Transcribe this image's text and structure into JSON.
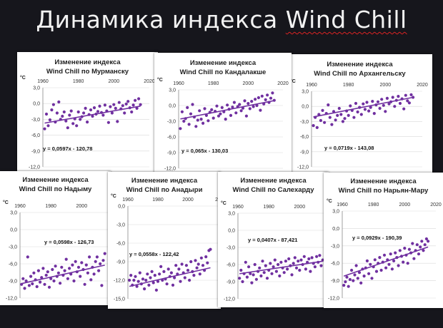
{
  "slide": {
    "title_prefix": "Динамика индекса ",
    "title_suffix": "Wind Chill"
  },
  "colors": {
    "point": "#7030a0",
    "trend": "#7030a0",
    "background": "#16161c"
  },
  "chart_data": [
    {
      "type": "scatter",
      "id": "murmansk",
      "title_line1": "Изменение индекса",
      "title_line2": "Wind Chill по Мурманску",
      "unit": "°C",
      "x_ticks": [
        "1960",
        "1980",
        "2000",
        "2020"
      ],
      "y_ticks": [
        "3,0",
        "0,0",
        "-3,0",
        "-6,0",
        "-9,0",
        "-12,0"
      ],
      "xlim": [
        1960,
        2020
      ],
      "ylim": [
        -12,
        3
      ],
      "equation": "y = 0,0597x - 120,78",
      "trend": {
        "slope": 0.0597,
        "intercept": -120.78
      },
      "x": [
        1961,
        1962,
        1963,
        1964,
        1965,
        1966,
        1967,
        1968,
        1969,
        1970,
        1971,
        1972,
        1973,
        1974,
        1975,
        1976,
        1977,
        1978,
        1979,
        1980,
        1981,
        1982,
        1983,
        1984,
        1985,
        1986,
        1987,
        1988,
        1989,
        1990,
        1991,
        1992,
        1993,
        1994,
        1995,
        1996,
        1997,
        1998,
        1999,
        2000,
        2001,
        2002,
        2003,
        2004,
        2005,
        2006,
        2007,
        2008,
        2009,
        2010,
        2011,
        2012,
        2013,
        2014,
        2015
      ],
      "y": [
        -4.8,
        -2.0,
        -4.2,
        -3.1,
        -1.2,
        -0.2,
        -3.5,
        -1.8,
        0.3,
        -3.0,
        -2.4,
        -1.6,
        -3.3,
        -4.6,
        -2.2,
        -1.4,
        -3.8,
        -2.9,
        -4.2,
        -1.6,
        -3.0,
        -2.5,
        -1.8,
        -0.9,
        -3.5,
        -2.1,
        -1.2,
        -2.4,
        -0.8,
        -2.0,
        -1.5,
        -0.5,
        -1.7,
        -2.2,
        -0.3,
        -1.4,
        -3.6,
        -0.6,
        -1.8,
        -0.2,
        -0.9,
        -3.4,
        0.2,
        -1.0,
        -0.4,
        -1.8,
        -0.1,
        0.4,
        -0.8,
        -1.6,
        -0.3,
        0.6,
        -0.9,
        0.9,
        -0.2
      ]
    },
    {
      "type": "scatter",
      "id": "kandalaksha",
      "title_line1": "Изменение индекса",
      "title_line2": "Wind Chill по Кандалакше",
      "unit": "°C",
      "x_ticks": [
        "1960",
        "1980",
        "2000",
        "2020"
      ],
      "y_ticks": [
        "3,0",
        "0,0",
        "-3,0",
        "-6,0",
        "-9,0",
        "-12,0"
      ],
      "xlim": [
        1960,
        2020
      ],
      "ylim": [
        -12,
        3
      ],
      "equation": "y = 0,065x - 130,03",
      "trend": {
        "slope": 0.065,
        "intercept": -130.03
      },
      "x": [
        1961,
        1962,
        1963,
        1964,
        1965,
        1966,
        1967,
        1968,
        1969,
        1970,
        1971,
        1972,
        1973,
        1974,
        1975,
        1976,
        1977,
        1978,
        1979,
        1980,
        1981,
        1982,
        1983,
        1984,
        1985,
        1986,
        1987,
        1988,
        1989,
        1990,
        1991,
        1992,
        1993,
        1994,
        1995,
        1996,
        1997,
        1998,
        1999,
        2000,
        2001,
        2002,
        2003,
        2004,
        2005,
        2006,
        2007,
        2008,
        2009,
        2010,
        2011,
        2012,
        2013,
        2014,
        2015
      ],
      "y": [
        -4.4,
        -1.2,
        -3.0,
        -2.5,
        -0.4,
        -3.6,
        -1.6,
        0.2,
        -2.2,
        -4.0,
        -2.8,
        -1.0,
        -2.6,
        -3.4,
        -0.6,
        -1.9,
        -2.9,
        -1.3,
        -0.8,
        -2.4,
        -1.1,
        -0.1,
        -2.0,
        -1.6,
        -0.4,
        -1.2,
        -2.6,
        0.1,
        -0.7,
        -1.9,
        -0.3,
        0.6,
        -1.4,
        -0.2,
        0.2,
        -1.0,
        -0.5,
        0.9,
        -2.0,
        0.4,
        -0.6,
        0.8,
        -0.2,
        1.2,
        0.0,
        1.5,
        -0.9,
        1.8,
        0.3,
        1.1,
        2.0,
        0.6,
        1.4,
        2.4,
        1.0
      ]
    },
    {
      "type": "scatter",
      "id": "arkhangelsk",
      "title_line1": "Изменение индекса",
      "title_line2": "Wind Chill по Архангельску",
      "unit": "°C",
      "x_ticks": [
        "1960",
        "1980",
        "2000",
        "2020"
      ],
      "y_ticks": [
        "3,0",
        "0,0",
        "-3,0",
        "-6,0",
        "-9,0",
        "-12,0"
      ],
      "xlim": [
        1960,
        2020
      ],
      "ylim": [
        -12,
        3
      ],
      "equation": "y = 0,0719x - 143,08",
      "trend": {
        "slope": 0.0719,
        "intercept": -143.08
      },
      "x": [
        1961,
        1962,
        1963,
        1964,
        1965,
        1966,
        1967,
        1968,
        1969,
        1970,
        1971,
        1972,
        1973,
        1974,
        1975,
        1976,
        1977,
        1978,
        1979,
        1980,
        1981,
        1982,
        1983,
        1984,
        1985,
        1986,
        1987,
        1988,
        1989,
        1990,
        1991,
        1992,
        1993,
        1994,
        1995,
        1996,
        1997,
        1998,
        1999,
        2000,
        2001,
        2002,
        2003,
        2004,
        2005,
        2006,
        2007,
        2008,
        2009,
        2010,
        2011,
        2012,
        2013,
        2014,
        2015
      ],
      "y": [
        -3.8,
        -2.2,
        -4.2,
        -1.6,
        -2.8,
        -0.8,
        -3.2,
        -1.4,
        0.3,
        -2.2,
        -3.6,
        -1.0,
        -2.7,
        -1.8,
        -0.4,
        -1.6,
        -3.0,
        -2.4,
        -0.9,
        -1.8,
        0.1,
        -0.8,
        -2.2,
        0.6,
        -1.1,
        -0.2,
        -1.6,
        0.5,
        -0.6,
        0.8,
        -0.9,
        -0.2,
        1.0,
        -1.4,
        0.3,
        0.9,
        -0.4,
        1.4,
        0.2,
        -1.0,
        1.6,
        0.5,
        0.9,
        1.8,
        0.0,
        1.2,
        2.0,
        0.6,
        1.5,
        -0.5,
        2.2,
        1.1,
        0.7,
        2.3,
        1.8
      ]
    },
    {
      "type": "scatter",
      "id": "nadym",
      "title_line1": "Изменение индекса",
      "title_line2": "Wind Chill по Надыму",
      "unit": "°C",
      "x_ticks": [
        "1960",
        "1980",
        "2000"
      ],
      "y_ticks": [
        "3,0",
        "0,0",
        "-3,0",
        "-6,0",
        "-9,0",
        "-12,0"
      ],
      "xlim": [
        1960,
        2017
      ],
      "ylim": [
        -12,
        3
      ],
      "equation": "y = 0,0598x - 126,73",
      "trend": {
        "slope": 0.0598,
        "intercept": -126.73
      },
      "x": [
        1961,
        1962,
        1963,
        1964,
        1965,
        1966,
        1967,
        1968,
        1969,
        1970,
        1971,
        1972,
        1973,
        1974,
        1975,
        1976,
        1977,
        1978,
        1979,
        1980,
        1981,
        1982,
        1983,
        1984,
        1985,
        1986,
        1987,
        1988,
        1989,
        1990,
        1991,
        1992,
        1993,
        1994,
        1995,
        1996,
        1997,
        1998,
        1999,
        2000,
        2001,
        2002,
        2003,
        2004,
        2005,
        2006,
        2007,
        2008,
        2009,
        2010,
        2011,
        2012,
        2013,
        2014,
        2015
      ],
      "y": [
        -9.6,
        -8.6,
        -10.3,
        -9.0,
        -4.8,
        -9.8,
        -8.2,
        -9.5,
        -7.6,
        -8.8,
        -10.0,
        -7.2,
        -9.2,
        -8.4,
        -6.8,
        -9.6,
        -8.0,
        -7.4,
        -10.1,
        -8.6,
        -7.0,
        -9.0,
        -6.4,
        -8.2,
        -7.6,
        -9.4,
        -6.6,
        -8.0,
        -7.2,
        -5.2,
        -8.6,
        -6.8,
        -7.8,
        -6.2,
        -9.0,
        -5.6,
        -7.4,
        -6.6,
        -8.2,
        -5.8,
        -7.0,
        -9.6,
        -6.2,
        -7.6,
        -4.8,
        -8.8,
        -6.6,
        -7.8,
        -5.6,
        -4.8,
        -7.2,
        -6.0,
        -9.8,
        -5.4,
        -4.2
      ]
    },
    {
      "type": "scatter",
      "id": "anadyr",
      "title_line1": "Изменение индекса",
      "title_line2": "Wind Chill по Анадыри",
      "unit": "°C",
      "x_ticks": [
        "1960",
        "1980",
        "2000",
        "20"
      ],
      "y_ticks": [
        "0,0",
        "-3,0",
        "-6,0",
        "-9,0",
        "-12,0",
        "-15,0"
      ],
      "xlim": [
        1960,
        2020
      ],
      "ylim": [
        -15,
        0
      ],
      "equation": "y = 0,0558x - 122,42",
      "trend": {
        "slope": 0.0558,
        "intercept": -122.42
      },
      "x": [
        1961,
        1962,
        1963,
        1964,
        1965,
        1966,
        1967,
        1968,
        1969,
        1970,
        1971,
        1972,
        1973,
        1974,
        1975,
        1976,
        1977,
        1978,
        1979,
        1980,
        1981,
        1982,
        1983,
        1984,
        1985,
        1986,
        1987,
        1988,
        1989,
        1990,
        1991,
        1992,
        1993,
        1994,
        1995,
        1996,
        1997,
        1998,
        1999,
        2000,
        2001,
        2002,
        2003,
        2004,
        2005,
        2006,
        2007,
        2008,
        2009,
        2010,
        2011,
        2012,
        2013,
        2014,
        2015
      ],
      "y": [
        -12.0,
        -11.2,
        -12.8,
        -12.0,
        -11.4,
        -13.0,
        -12.2,
        -10.8,
        -12.6,
        -11.8,
        -13.4,
        -12.0,
        -11.0,
        -12.8,
        -11.6,
        -10.6,
        -12.4,
        -11.2,
        -13.6,
        -12.2,
        -11.0,
        -9.8,
        -12.0,
        -10.6,
        -11.8,
        -12.6,
        -10.2,
        -11.4,
        -10.8,
        -12.8,
        -11.6,
        -9.6,
        -11.0,
        -10.2,
        -12.2,
        -9.4,
        -10.8,
        -11.6,
        -9.6,
        -10.4,
        -12.0,
        -9.0,
        -10.6,
        -11.2,
        -8.8,
        -10.0,
        -9.4,
        -11.0,
        -8.4,
        -9.6,
        -10.4,
        -8.2,
        -9.2,
        -7.2,
        -7.0
      ]
    },
    {
      "type": "scatter",
      "id": "salekhard",
      "title_line1": "Изменение индекса",
      "title_line2": "Wind Chill по Салехарду",
      "unit": "°C",
      "x_ticks": [
        "1960",
        "1980",
        "2000"
      ],
      "y_ticks": [
        "3,0",
        "0,0",
        "-3,0",
        "-6,0",
        "-9,0",
        "-12,0"
      ],
      "xlim": [
        1960,
        2017
      ],
      "ylim": [
        -12,
        3
      ],
      "equation": "y = 0,0407x - 87,421",
      "trend": {
        "slope": 0.0407,
        "intercept": -87.421
      },
      "x": [
        1961,
        1962,
        1963,
        1964,
        1965,
        1966,
        1967,
        1968,
        1969,
        1970,
        1971,
        1972,
        1973,
        1974,
        1975,
        1976,
        1977,
        1978,
        1979,
        1980,
        1981,
        1982,
        1983,
        1984,
        1985,
        1986,
        1987,
        1988,
        1989,
        1990,
        1991,
        1992,
        1993,
        1994,
        1995,
        1996,
        1997,
        1998,
        1999,
        2000,
        2001,
        2002,
        2003,
        2004,
        2005,
        2006,
        2007,
        2008,
        2009,
        2010,
        2011,
        2012,
        2013,
        2014,
        2015
      ],
      "y": [
        -8.4,
        -7.0,
        -9.0,
        -7.6,
        -5.6,
        -8.2,
        -6.4,
        -7.6,
        -9.2,
        -7.8,
        -6.0,
        -8.6,
        -7.2,
        -6.6,
        -8.0,
        -5.4,
        -7.4,
        -6.2,
        -8.4,
        -7.0,
        -5.8,
        -7.6,
        -6.4,
        -5.2,
        -7.2,
        -6.0,
        -8.0,
        -5.6,
        -6.6,
        -7.4,
        -5.4,
        -6.8,
        -5.0,
        -6.2,
        -7.8,
        -5.8,
        -4.8,
        -6.6,
        -5.4,
        -7.0,
        -5.2,
        -6.0,
        -4.6,
        -6.8,
        -5.6,
        -5.0,
        -7.2,
        -4.8,
        -5.8,
        -6.4,
        -4.6,
        -5.6,
        -4.4,
        -6.2,
        -5.2
      ]
    },
    {
      "type": "scatter",
      "id": "naryan-mar",
      "title_line1": "Изменение индекса",
      "title_line2": "Wind Chill по Нарьян-Мару",
      "unit": "°C",
      "x_ticks": [
        "1960",
        "1980",
        "2000",
        "2020"
      ],
      "y_ticks": [
        "3,0",
        "0,0",
        "-3,0",
        "-6,0",
        "-9,0",
        "-12,0"
      ],
      "xlim": [
        1960,
        2020
      ],
      "ylim": [
        -12,
        3
      ],
      "equation": "y = 0,0929x - 190,39",
      "trend": {
        "slope": 0.0929,
        "intercept": -190.39
      },
      "x": [
        1961,
        1962,
        1963,
        1964,
        1965,
        1966,
        1967,
        1968,
        1969,
        1970,
        1971,
        1972,
        1973,
        1974,
        1975,
        1976,
        1977,
        1978,
        1979,
        1980,
        1981,
        1982,
        1983,
        1984,
        1985,
        1986,
        1987,
        1988,
        1989,
        1990,
        1991,
        1992,
        1993,
        1994,
        1995,
        1996,
        1997,
        1998,
        1999,
        2000,
        2001,
        2002,
        2003,
        2004,
        2005,
        2006,
        2007,
        2008,
        2009,
        2010,
        2011,
        2012,
        2013,
        2014,
        2015
      ],
      "y": [
        -9.8,
        -9.2,
        -8.4,
        -10.0,
        -8.8,
        -7.2,
        -9.0,
        -8.0,
        -6.4,
        -8.6,
        -7.6,
        -9.4,
        -7.0,
        -8.2,
        -6.8,
        -5.6,
        -7.8,
        -6.2,
        -8.6,
        -6.6,
        -5.4,
        -7.4,
        -6.0,
        -5.0,
        -7.2,
        -5.8,
        -4.6,
        -6.8,
        -5.4,
        -6.2,
        -4.4,
        -7.0,
        -5.6,
        -4.2,
        -5.0,
        -6.4,
        -3.8,
        -4.8,
        -5.8,
        -3.4,
        -4.6,
        -6.0,
        -3.6,
        -4.2,
        -2.6,
        -5.2,
        -3.8,
        -2.8,
        -4.4,
        -3.2,
        -2.2,
        -3.8,
        -2.8,
        -1.8,
        -2.2
      ]
    }
  ]
}
